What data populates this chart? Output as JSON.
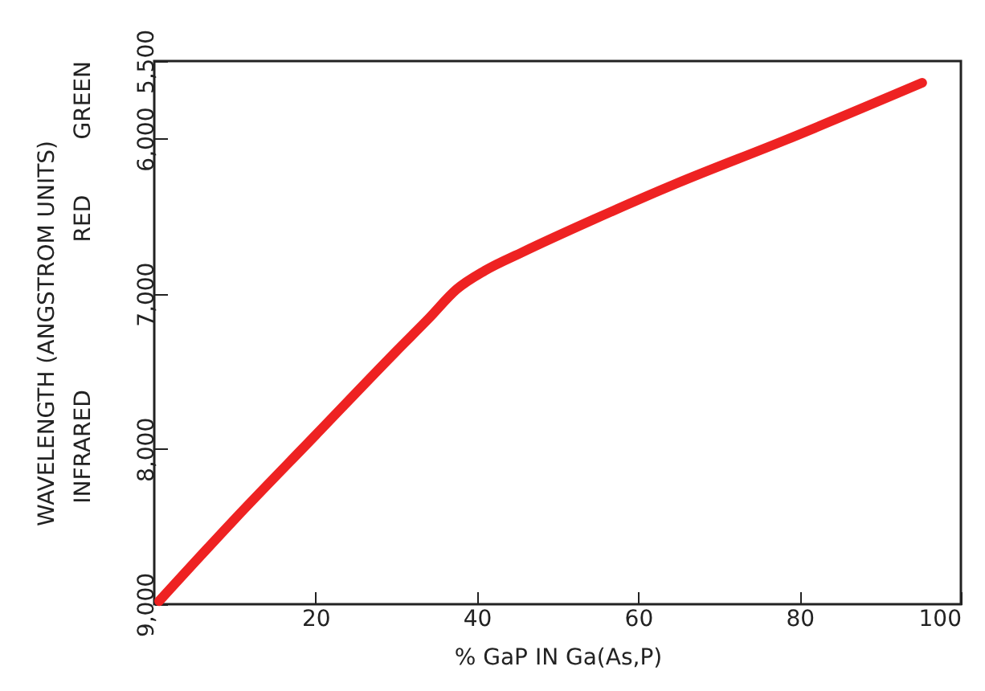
{
  "chart_data": {
    "type": "line",
    "xlabel": "% GaP IN Ga(As,P)",
    "ylabel": "WAVELENGTH (ANGSTROM UNITS)",
    "x": [
      0.6,
      10,
      20,
      30,
      34,
      37.5,
      41,
      45.7,
      54.5,
      64.7,
      78.2,
      95.2
    ],
    "series": [
      {
        "color": "#ee2222",
        "values": [
          8980,
          8450,
          7910,
          7370,
          7160,
          6970,
          6850,
          6730,
          6520,
          6290,
          6010,
          5640
        ]
      }
    ],
    "xlim": [
      0,
      100
    ],
    "xticks": [
      20,
      40,
      60,
      80,
      100
    ],
    "ylim": [
      9000,
      5500
    ],
    "yticks": [
      {
        "value": 9000,
        "label": "9,000"
      },
      {
        "value": 8000,
        "label": "8,000"
      },
      {
        "value": 7000,
        "label": "7,000"
      },
      {
        "value": 6000,
        "label": "6,000"
      },
      {
        "value": 5500,
        "label": "5,500"
      }
    ],
    "annotations": [
      "INFRARED",
      "RED",
      "GREEN"
    ],
    "grid": false,
    "marker": "none",
    "line_style": "solid"
  }
}
